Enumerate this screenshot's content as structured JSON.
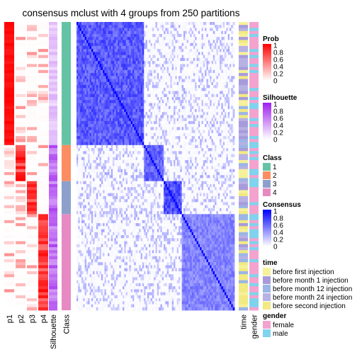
{
  "chart_data": {
    "type": "heatmap",
    "title": "consensus mclust with 4 groups from 250 partitions",
    "n_groups": 4,
    "n_partitions": 250,
    "class_groups": [
      {
        "class": 1,
        "share": 0.43
      },
      {
        "class": 2,
        "share": 0.12
      },
      {
        "class": 3,
        "share": 0.11
      },
      {
        "class": 4,
        "share": 0.34
      }
    ],
    "left_columns": [
      "p1",
      "p2",
      "p3",
      "p4",
      "Silhouette",
      "Class"
    ],
    "right_columns": [
      "time",
      "gender"
    ],
    "legends": [
      {
        "title": "Prob",
        "type": "continuous",
        "ticks": [
          "1",
          "0.8",
          "0.6",
          "0.4",
          "0.2",
          "0"
        ],
        "colors": [
          "#ff0000",
          "#ffffff"
        ]
      },
      {
        "title": "Silhouette",
        "type": "continuous",
        "ticks": [
          "1",
          "0.8",
          "0.6",
          "0.4",
          "0.2",
          "0"
        ],
        "colors": [
          "#9e1ff0",
          "#ffffff"
        ]
      },
      {
        "title": "Class",
        "type": "discrete",
        "items": [
          {
            "label": "1",
            "color": "#66c2a5"
          },
          {
            "label": "2",
            "color": "#fc8d62"
          },
          {
            "label": "3",
            "color": "#8da0cb"
          },
          {
            "label": "4",
            "color": "#e78ac3"
          }
        ]
      },
      {
        "title": "Consensus",
        "type": "continuous",
        "ticks": [
          "1",
          "0.8",
          "0.6",
          "0.4",
          "0.2",
          "0"
        ],
        "colors": [
          "#0000ff",
          "#ffffff"
        ]
      },
      {
        "title": "time",
        "type": "discrete",
        "items": [
          {
            "label": "before first injection",
            "color": "#f6f19a"
          },
          {
            "label": "before month 1 injection",
            "color": "#a79bdc"
          },
          {
            "label": "before month 12 injection",
            "color": "#9ab5e6"
          },
          {
            "label": "before month 24 injection",
            "color": "#b7b1e4"
          },
          {
            "label": "before second injection",
            "color": "#f2ea82"
          }
        ]
      },
      {
        "title": "gender",
        "type": "discrete",
        "items": [
          {
            "label": "female",
            "color": "#f4a3cf"
          },
          {
            "label": "male",
            "color": "#7fd3ee"
          }
        ]
      }
    ]
  }
}
